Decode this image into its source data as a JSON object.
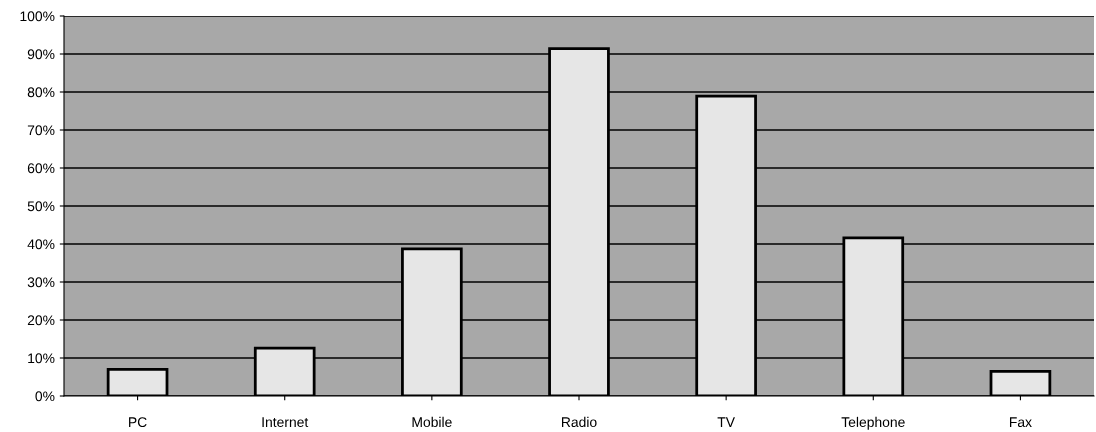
{
  "chart_data": {
    "type": "bar",
    "categories": [
      "PC",
      "Internet",
      "Mobile",
      "Radio",
      "TV",
      "Telephone",
      "Fax"
    ],
    "values": [
      7,
      12.6,
      38.7,
      91.4,
      78.9,
      41.6,
      6.5
    ],
    "color": "#e6e6e6",
    "ylim": [
      0,
      100
    ],
    "yticks": [
      {
        "value": 0,
        "label": "0%"
      },
      {
        "value": 10,
        "label": "10%"
      },
      {
        "value": 20,
        "label": "20%"
      },
      {
        "value": 30,
        "label": "30%"
      },
      {
        "value": 40,
        "label": "40%"
      },
      {
        "value": 50,
        "label": "50%"
      },
      {
        "value": 60,
        "label": "60%"
      },
      {
        "value": 70,
        "label": "70%"
      },
      {
        "value": 80,
        "label": "80%"
      },
      {
        "value": 90,
        "label": "90%"
      },
      {
        "value": 100,
        "label": "100%"
      }
    ],
    "grid": "y"
  }
}
